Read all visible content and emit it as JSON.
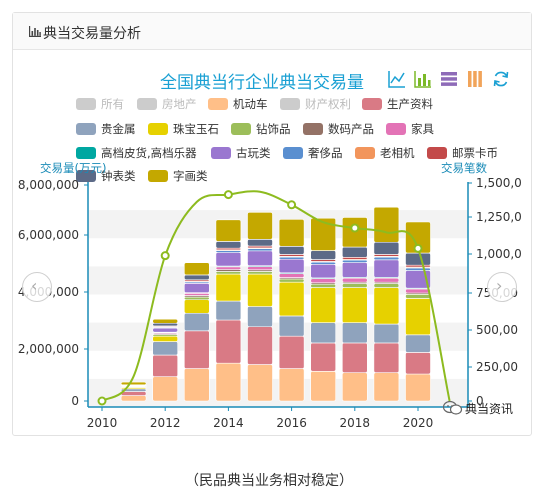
{
  "panel": {
    "title": "典当交易量分析"
  },
  "chart_title": "全国典当行企业典当交易量",
  "caption": "（民品典当业务相对稳定）",
  "watermark": "典当资讯",
  "colors": {
    "accent": "#1aa0d3",
    "axis": "#1a8bb7",
    "line": "#8dbb1f"
  },
  "chart_data": {
    "type": "bar",
    "x": [
      2010,
      2011,
      2012,
      2013,
      2014,
      2015,
      2016,
      2017,
      2018,
      2019,
      2020,
      2021
    ],
    "xtick_labels": [
      "2010",
      "2012",
      "2014",
      "2016",
      "2018",
      "2020"
    ],
    "y_left": {
      "name": "交易量(万元)",
      "ticks": [
        "8,000,000",
        "6,000,000",
        "4,000,000",
        "2,000,000",
        "0"
      ],
      "range": [
        0,
        8000000
      ]
    },
    "y_right": {
      "name": "交易笔数",
      "ticks": [
        "1,500,0",
        "1,250,0",
        "1,000,0",
        "750,00",
        "500,00",
        "250,00",
        "0"
      ],
      "range": [
        0,
        1500000
      ]
    },
    "series": [
      {
        "name": "所有",
        "color": "#cccccc",
        "enabled": false
      },
      {
        "name": "房地产",
        "color": "#cccccc",
        "enabled": false
      },
      {
        "name": "机动车",
        "color": "#ffbf88",
        "values": [
          0,
          200000,
          900000,
          1200000,
          1400000,
          1350000,
          1200000,
          1100000,
          1050000,
          1050000,
          1000000,
          0
        ]
      },
      {
        "name": "财产权利",
        "color": "#cccccc",
        "enabled": false
      },
      {
        "name": "生产资料",
        "color": "#d97a85",
        "values": [
          0,
          150000,
          800000,
          1400000,
          1600000,
          1400000,
          1200000,
          1050000,
          1100000,
          1100000,
          800000,
          0
        ]
      },
      {
        "name": "贵金属",
        "color": "#8fa3bd",
        "values": [
          0,
          100000,
          500000,
          650000,
          700000,
          750000,
          750000,
          750000,
          750000,
          700000,
          650000,
          0
        ]
      },
      {
        "name": "珠宝玉石",
        "color": "#e6d100",
        "values": [
          0,
          50000,
          200000,
          500000,
          1000000,
          1200000,
          1250000,
          1300000,
          1300000,
          1350000,
          1350000,
          0
        ]
      },
      {
        "name": "钻饰品",
        "color": "#9cbe5a",
        "values": [
          0,
          20000,
          60000,
          100000,
          100000,
          100000,
          120000,
          130000,
          150000,
          150000,
          150000,
          0
        ]
      },
      {
        "name": "数码产品",
        "color": "#947266",
        "values": [
          0,
          10000,
          40000,
          60000,
          70000,
          60000,
          50000,
          50000,
          50000,
          50000,
          50000,
          0
        ]
      },
      {
        "name": "家具",
        "color": "#e373b6",
        "values": [
          0,
          10000,
          40000,
          80000,
          100000,
          120000,
          150000,
          150000,
          150000,
          150000,
          150000,
          0
        ]
      },
      {
        "name": "高档皮货,高档乐器",
        "color": "#00a7a1",
        "values": [
          0,
          5000,
          10000,
          20000,
          30000,
          30000,
          30000,
          30000,
          30000,
          30000,
          30000,
          0
        ]
      },
      {
        "name": "古玩类",
        "color": "#9a77d0",
        "values": [
          0,
          20000,
          150000,
          350000,
          500000,
          550000,
          500000,
          500000,
          550000,
          650000,
          650000,
          0
        ]
      },
      {
        "name": "奢侈品",
        "color": "#5a8fd0",
        "values": [
          0,
          5000,
          30000,
          50000,
          70000,
          80000,
          80000,
          80000,
          90000,
          100000,
          100000,
          0
        ]
      },
      {
        "name": "老相机",
        "color": "#f2955c",
        "values": [
          0,
          5000,
          20000,
          30000,
          30000,
          30000,
          30000,
          30000,
          30000,
          30000,
          30000,
          0
        ]
      },
      {
        "name": "邮票卡币",
        "color": "#c34a4a",
        "values": [
          0,
          5000,
          30000,
          50000,
          60000,
          70000,
          70000,
          70000,
          70000,
          70000,
          70000,
          0
        ]
      },
      {
        "name": "钟表类",
        "color": "#5c6a87",
        "values": [
          0,
          20000,
          100000,
          180000,
          250000,
          250000,
          300000,
          330000,
          380000,
          450000,
          450000,
          0
        ]
      },
      {
        "name": "字画类",
        "color": "#c4a800",
        "values": [
          0,
          100000,
          150000,
          450000,
          800000,
          1000000,
          1000000,
          1200000,
          1100000,
          1300000,
          1150000,
          0
        ]
      }
    ],
    "line": {
      "axis": "right",
      "name": "交易笔数",
      "values": [
        0,
        170000,
        1000000,
        1370000,
        1420000,
        1440000,
        1350000,
        1230000,
        1190000,
        1160000,
        1050000,
        0
      ]
    },
    "legend_placement": "top",
    "grid": true
  }
}
